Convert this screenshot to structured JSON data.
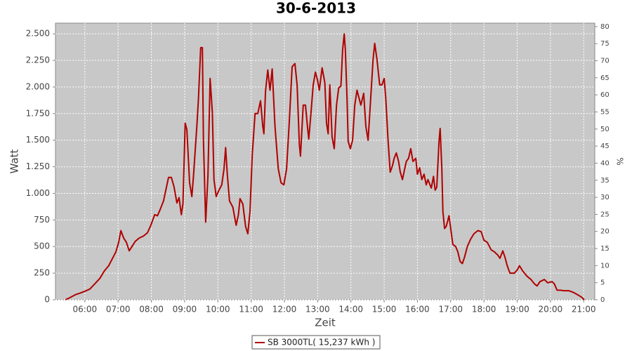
{
  "chart_data": {
    "type": "line",
    "title": "30-6-2013",
    "x_label": "Zeit",
    "y_label": "Watt",
    "y2_label": "%",
    "grid": true,
    "legend": "bottom",
    "x": [
      "05:25",
      "05:33",
      "05:44",
      "05:50",
      "06:00",
      "06:09",
      "06:18",
      "06:27",
      "06:35",
      "06:43",
      "06:49",
      "06:56",
      "07:01",
      "07:05",
      "07:10",
      "07:15",
      "07:20",
      "07:25",
      "07:31",
      "07:38",
      "07:46",
      "07:53",
      "07:59",
      "08:06",
      "08:11",
      "08:16",
      "08:22",
      "08:26",
      "08:31",
      "08:36",
      "08:41",
      "08:46",
      "08:50",
      "08:54",
      "08:57",
      "09:01",
      "09:04",
      "09:09",
      "09:13",
      "09:16",
      "09:22",
      "09:25",
      "09:29",
      "09:32",
      "09:34",
      "09:38",
      "09:42",
      "09:46",
      "09:50",
      "09:53",
      "09:57",
      "10:02",
      "10:07",
      "10:11",
      "10:14",
      "10:17",
      "10:21",
      "10:27",
      "10:33",
      "10:37",
      "10:40",
      "10:45",
      "10:50",
      "10:54",
      "10:58",
      "11:02",
      "11:07",
      "11:12",
      "11:17",
      "11:21",
      "11:23",
      "11:26",
      "11:30",
      "11:34",
      "11:38",
      "11:43",
      "11:49",
      "11:54",
      "11:59",
      "12:04",
      "12:09",
      "12:14",
      "12:19",
      "12:23",
      "12:27",
      "12:29",
      "12:34",
      "12:38",
      "12:42",
      "12:44",
      "12:48",
      "12:52",
      "12:56",
      "13:00",
      "13:03",
      "13:08",
      "13:13",
      "13:16",
      "13:19",
      "13:22",
      "13:26",
      "13:30",
      "13:34",
      "13:38",
      "13:42",
      "13:45",
      "13:48",
      "13:50",
      "13:53",
      "13:55",
      "13:59",
      "14:03",
      "14:07",
      "14:11",
      "14:15",
      "14:18",
      "14:23",
      "14:27",
      "14:31",
      "14:35",
      "14:40",
      "14:43",
      "14:47",
      "14:52",
      "14:56",
      "15:00",
      "15:03",
      "15:07",
      "15:11",
      "15:15",
      "15:18",
      "15:22",
      "15:26",
      "15:29",
      "15:33",
      "15:37",
      "15:40",
      "15:44",
      "15:48",
      "15:52",
      "15:57",
      "16:00",
      "16:04",
      "16:08",
      "16:12",
      "16:16",
      "16:19",
      "16:25",
      "16:29",
      "16:32",
      "16:35",
      "16:39",
      "16:41",
      "16:44",
      "16:46",
      "16:49",
      "16:52",
      "16:57",
      "17:00",
      "17:04",
      "17:09",
      "17:13",
      "17:17",
      "17:21",
      "17:25",
      "17:30",
      "17:36",
      "17:42",
      "17:49",
      "17:55",
      "18:00",
      "18:06",
      "18:13",
      "18:19",
      "18:25",
      "18:29",
      "18:34",
      "18:38",
      "18:42",
      "18:47",
      "18:55",
      "19:00",
      "19:04",
      "19:10",
      "19:18",
      "19:25",
      "19:31",
      "19:36",
      "19:41",
      "19:49",
      "19:55",
      "20:03",
      "20:07",
      "20:12",
      "20:18",
      "20:24",
      "20:33",
      "20:41",
      "20:48",
      "20:56",
      "21:01"
    ],
    "series": [
      {
        "name": "SB 3000TL( 15,237 kWh )",
        "color": "#b00000",
        "values": [
          0,
          20,
          50,
          60,
          80,
          100,
          150,
          200,
          270,
          320,
          380,
          450,
          540,
          650,
          580,
          540,
          460,
          500,
          550,
          580,
          600,
          630,
          700,
          800,
          790,
          850,
          930,
          1030,
          1150,
          1150,
          1060,
          910,
          960,
          800,
          900,
          1660,
          1600,
          1100,
          970,
          1160,
          1630,
          1890,
          2370,
          2370,
          1500,
          730,
          1160,
          2080,
          1760,
          1130,
          970,
          1030,
          1080,
          1230,
          1430,
          1180,
          930,
          870,
          700,
          800,
          950,
          900,
          690,
          620,
          830,
          1360,
          1750,
          1750,
          1870,
          1630,
          1560,
          1960,
          2160,
          1970,
          2170,
          1630,
          1230,
          1100,
          1080,
          1230,
          1690,
          2190,
          2220,
          2020,
          1460,
          1350,
          1830,
          1830,
          1610,
          1510,
          1760,
          2020,
          2140,
          2060,
          1970,
          2180,
          2040,
          1660,
          1560,
          2020,
          1530,
          1420,
          1830,
          1990,
          2010,
          2350,
          2500,
          2350,
          1890,
          1490,
          1420,
          1500,
          1830,
          1970,
          1890,
          1830,
          1940,
          1630,
          1500,
          1830,
          2260,
          2410,
          2260,
          2020,
          2020,
          2080,
          1890,
          1500,
          1200,
          1260,
          1330,
          1380,
          1300,
          1200,
          1130,
          1230,
          1300,
          1330,
          1420,
          1300,
          1330,
          1180,
          1240,
          1130,
          1180,
          1080,
          1130,
          1050,
          1160,
          1030,
          1060,
          1490,
          1610,
          1230,
          830,
          670,
          690,
          790,
          670,
          520,
          500,
          450,
          360,
          340,
          400,
          500,
          570,
          620,
          650,
          640,
          560,
          540,
          470,
          450,
          420,
          390,
          460,
          400,
          320,
          250,
          250,
          280,
          320,
          270,
          220,
          190,
          150,
          130,
          170,
          190,
          160,
          170,
          150,
          90,
          90,
          85,
          85,
          70,
          50,
          25,
          0
        ]
      }
    ],
    "xlim": [
      "05:07",
      "21:20"
    ],
    "xticks": [
      "06:00",
      "07:00",
      "08:00",
      "09:00",
      "10:00",
      "11:00",
      "12:00",
      "13:00",
      "14:00",
      "15:00",
      "16:00",
      "17:00",
      "18:00",
      "19:00",
      "20:00",
      "21:00"
    ],
    "ylim": [
      0,
      2600
    ],
    "yticks": [
      0,
      250,
      500,
      750,
      {
        "value": 1000,
        "label": "1.000"
      },
      {
        "value": 1250,
        "label": "1.250"
      },
      {
        "value": 1500,
        "label": "1.500"
      },
      {
        "value": 1750,
        "label": "1.750"
      },
      {
        "value": 2000,
        "label": "2.000"
      },
      {
        "value": 2250,
        "label": "2.250"
      },
      {
        "value": 2500,
        "label": "2.500"
      }
    ],
    "y2lim": [
      0,
      81
    ],
    "y2ticks": [
      0,
      5,
      10,
      15,
      20,
      25,
      30,
      35,
      40,
      45,
      50,
      55,
      60,
      65,
      70,
      75,
      80
    ]
  }
}
